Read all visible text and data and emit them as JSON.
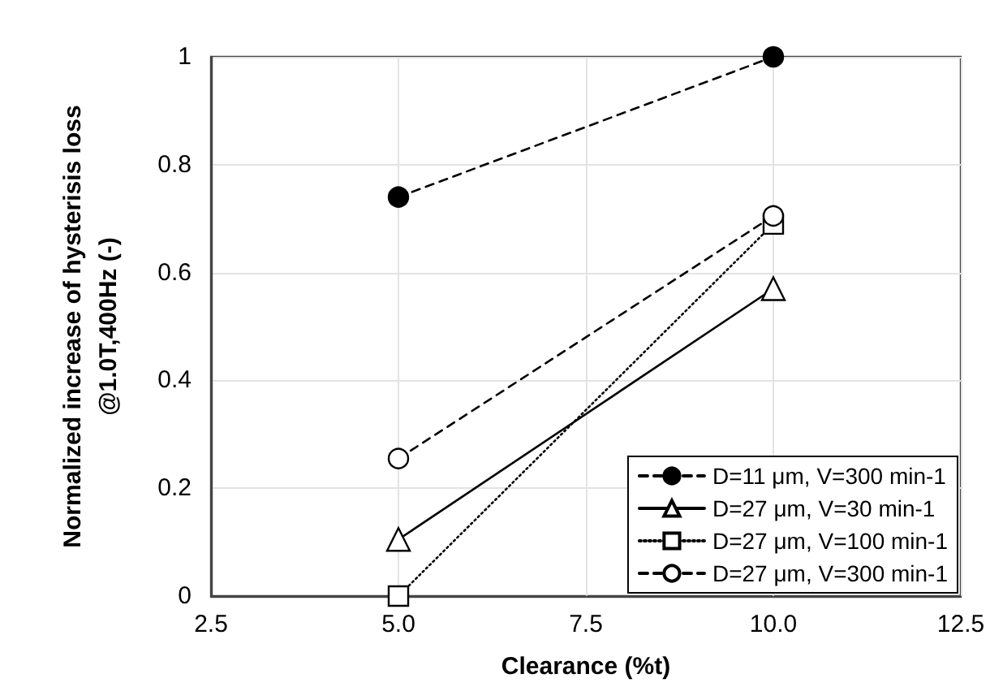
{
  "chart_data": {
    "type": "line",
    "xlabel": "Clearance (%t)",
    "ylabel": "Normalized increase of hysterisis loss\n@1.0T,400Hz (-)",
    "x": [
      5,
      10
    ],
    "xlim": [
      2.5,
      12.5
    ],
    "xticks": [
      2.5,
      {
        "value": 5,
        "label": "5.0"
      },
      7.5,
      {
        "value": 10,
        "label": "10.0"
      },
      12.5
    ],
    "ylim": [
      0,
      1
    ],
    "yticks": [
      0,
      0.2,
      0.4,
      0.6,
      0.8,
      1
    ],
    "grid": true,
    "legend": "bottom right",
    "series": [
      {
        "name": "D=11 μm, V=300 min-1",
        "color": "#000000",
        "marker": "circle",
        "colors": [
          "#000000",
          "#000000"
        ],
        "line_style": "dashed",
        "values": [
          0.74,
          1.0
        ]
      },
      {
        "name": "D=27 μm, V=30 min-1",
        "color": "#000000",
        "marker": "triangle",
        "colors": [
          "#ffffff",
          "#ffffff"
        ],
        "line_style": "solid",
        "values": [
          0.105,
          0.57
        ]
      },
      {
        "name": "D=27 μm, V=100 min-1",
        "color": "#000000",
        "marker": "square",
        "colors": [
          "#ffffff",
          "#ffffff"
        ],
        "line_style": "dotted",
        "values": [
          0.0,
          0.69
        ]
      },
      {
        "name": "D=27 μm, V=300 min-1",
        "color": "#000000",
        "marker": "circle",
        "colors": [
          "#ffffff",
          "#ffffff"
        ],
        "line_style": "dashed",
        "values": [
          0.255,
          0.705
        ]
      }
    ]
  }
}
